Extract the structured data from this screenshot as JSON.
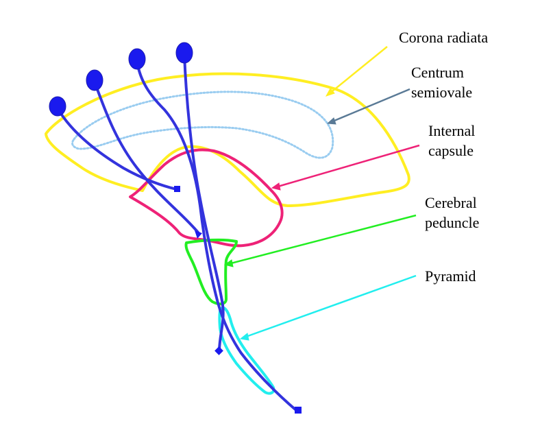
{
  "labels": {
    "corona_radiata": "Corona radiata",
    "centrum_semiovale": {
      "line1": "Centrum",
      "line2": "semiovale"
    },
    "internal_capsule": {
      "line1": "Internal",
      "line2": "capsule"
    },
    "cerebral_peduncle": {
      "line1": "Cerebral",
      "line2": "peduncle"
    },
    "pyramid": "Pyramid"
  },
  "colors": {
    "corona_radiata": "#ffee22",
    "centrum_semiovale_outline": "#99ccf0",
    "centrum_semiovale_arrow": "#5a7a96",
    "internal_capsule": "#ee2277",
    "cerebral_peduncle": "#22ee22",
    "pyramid": "#22eeee",
    "fibers": "#3333dd",
    "neuron_body": "#1a1aee"
  },
  "icons": {
    "neuron_body": "filled-ellipse",
    "fiber_end": "square-terminal"
  }
}
